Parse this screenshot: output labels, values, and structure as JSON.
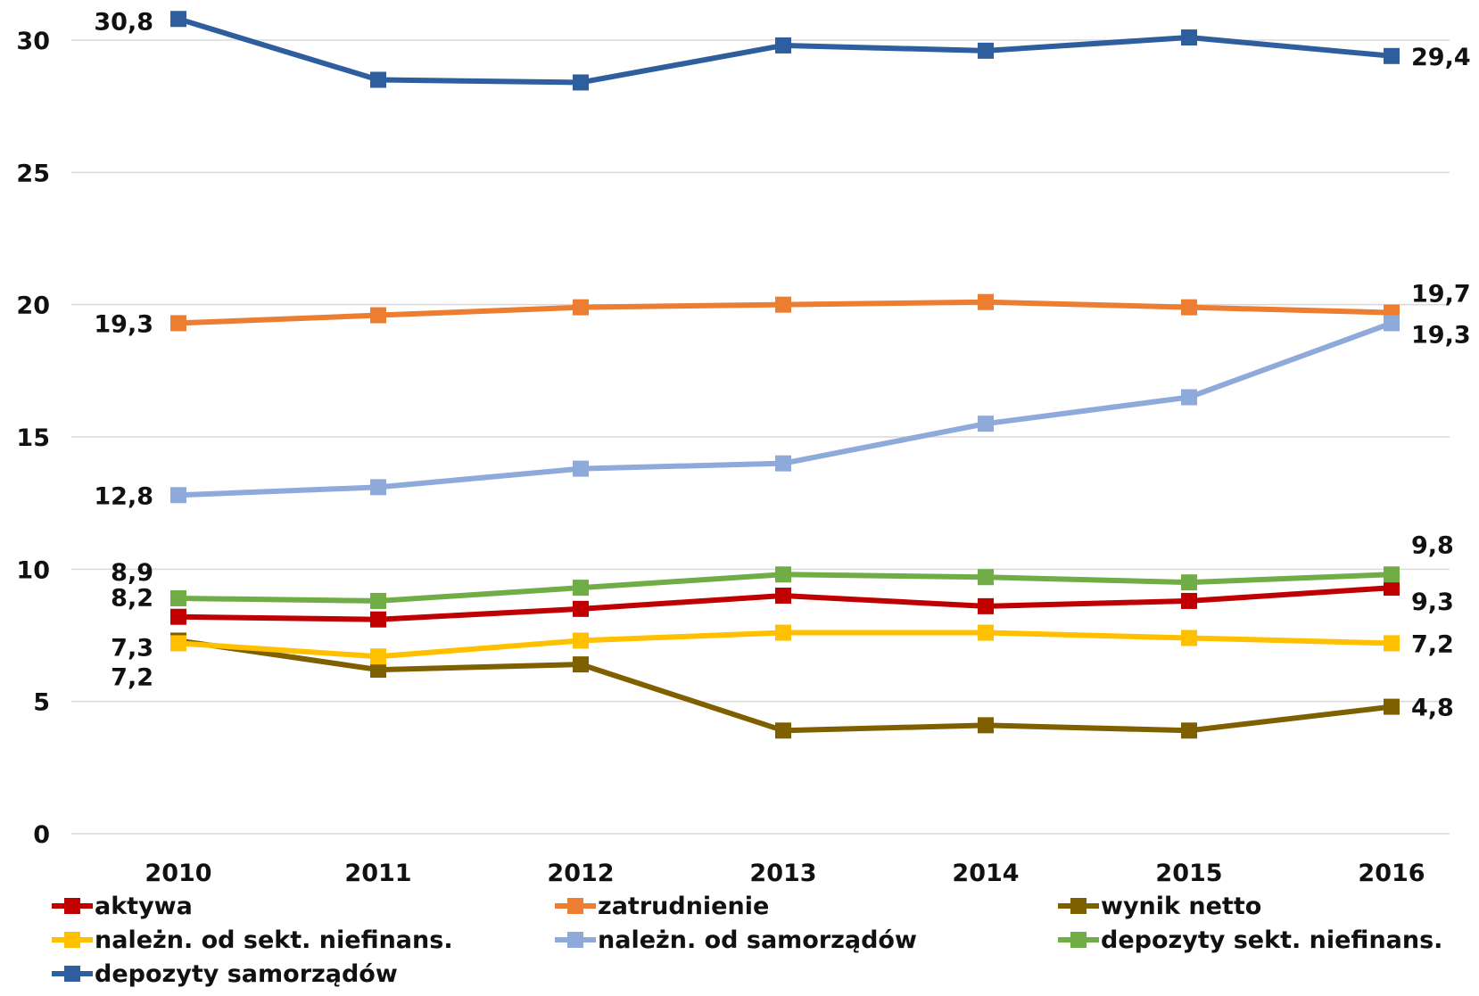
{
  "chart_data": {
    "type": "line",
    "title": "",
    "xlabel": "",
    "ylabel": "",
    "ylim": [
      0,
      30
    ],
    "yticks": [
      0,
      5,
      10,
      15,
      20,
      25,
      30
    ],
    "ytick_labels": [
      "0",
      "5",
      "10",
      "15",
      "20",
      "25",
      "30"
    ],
    "categories": [
      "2010",
      "2011",
      "2012",
      "2013",
      "2014",
      "2015",
      "2016"
    ],
    "grid": "horizontal",
    "legend_position": "bottom",
    "series": [
      {
        "name": "aktywa",
        "color": "#c00000",
        "values": [
          8.2,
          8.1,
          8.5,
          9.0,
          8.6,
          8.8,
          9.3
        ],
        "labels": [
          "8,2",
          null,
          null,
          null,
          null,
          null,
          "9,3"
        ]
      },
      {
        "name": "zatrudnienie",
        "color": "#ed7d31",
        "values": [
          19.3,
          19.6,
          19.9,
          20.0,
          20.1,
          19.9,
          19.7
        ],
        "labels": [
          "19,3",
          null,
          null,
          null,
          null,
          null,
          "19,7"
        ]
      },
      {
        "name": "wynik netto",
        "color": "#7f6000",
        "values": [
          7.3,
          6.2,
          6.4,
          3.9,
          4.1,
          3.9,
          4.8
        ],
        "labels": [
          "7,3",
          null,
          null,
          null,
          null,
          null,
          "4,8"
        ]
      },
      {
        "name": "należn. od sekt. niefinans.",
        "color": "#ffc000",
        "values": [
          7.2,
          6.7,
          7.3,
          7.6,
          7.6,
          7.4,
          7.2
        ],
        "labels": [
          "7,2",
          null,
          null,
          null,
          null,
          null,
          "7,2"
        ]
      },
      {
        "name": "należn. od samorządów",
        "color": "#8eaadb",
        "values": [
          12.8,
          13.1,
          13.8,
          14.0,
          15.5,
          16.5,
          19.3
        ],
        "labels": [
          "12,8",
          null,
          null,
          null,
          null,
          null,
          "19,3"
        ]
      },
      {
        "name": "depozyty sekt. niefinans.",
        "color": "#70ad47",
        "values": [
          8.9,
          8.8,
          9.3,
          9.8,
          9.7,
          9.5,
          9.8
        ],
        "labels": [
          "8,9",
          null,
          null,
          null,
          null,
          null,
          "9,8"
        ]
      },
      {
        "name": "depozyty samorządów",
        "color": "#2e5e9e",
        "values": [
          30.8,
          28.5,
          28.4,
          29.8,
          29.6,
          30.1,
          29.4
        ],
        "labels": [
          "30,8",
          null,
          null,
          null,
          null,
          null,
          "29,4"
        ]
      }
    ]
  }
}
